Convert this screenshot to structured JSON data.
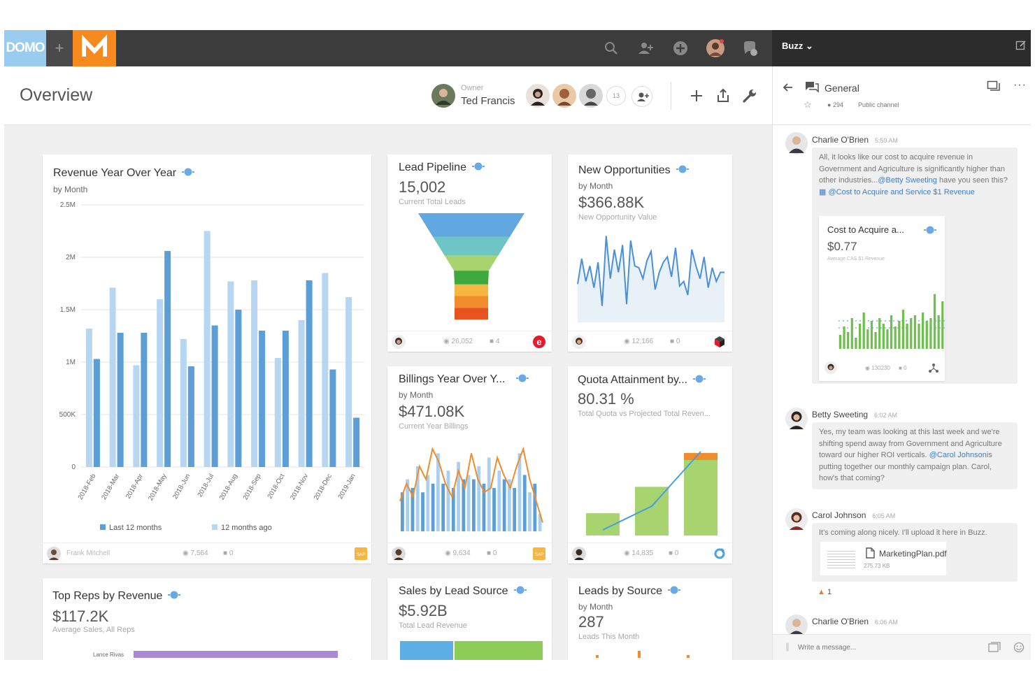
{
  "topbar": {
    "logo_text": "DOMO",
    "plus_label": "+",
    "buzz_label": "Buzz"
  },
  "page": {
    "title": "Overview",
    "owner_label": "Owner",
    "owner_name": "Ted Francis",
    "member_count": "13"
  },
  "cards": {
    "revenue": {
      "title": "Revenue Year Over Year",
      "subtitle": "by Month",
      "footer_user": "Frank Mitchell",
      "views": "7,564",
      "comments": "0"
    },
    "lead_pipeline": {
      "title": "Lead Pipeline",
      "value": "15,002",
      "desc": "Current Total Leads",
      "views": "26,052",
      "comments": "4"
    },
    "new_opps": {
      "title": "New Opportunities",
      "subtitle": "by Month",
      "value": "$366.88K",
      "desc": "New Opportunity Value",
      "views": "12,166",
      "comments": "0"
    },
    "billings": {
      "title": "Billings Year Over Y...",
      "subtitle": "by Month",
      "value": "$471.08K",
      "desc": "Current Year Billings",
      "views": "9,634",
      "comments": "0"
    },
    "quota": {
      "title": "Quota Attainment by...",
      "value": "80.31 %",
      "desc": "Total Quota vs Projected Total Reven...",
      "views": "14,835",
      "comments": "0"
    },
    "top_reps": {
      "title": "Top Reps by Revenue",
      "value": "$117.2K",
      "desc": "Average Sales, All Reps",
      "first_rep": "Lance Rivas"
    },
    "sales_lead": {
      "title": "Sales by Lead Source",
      "value": "$5.92B",
      "desc": "Total Lead Revenue"
    },
    "leads_source": {
      "title": "Leads by Source",
      "subtitle": "by Month",
      "value": "287",
      "desc": "Leads This Month"
    }
  },
  "chart_data": [
    {
      "type": "bar",
      "title": "Revenue Year Over Year",
      "categories": [
        "2018-Feb",
        "2018-Mar",
        "2018-Apr",
        "2018-May",
        "2018-Jun",
        "2018-Jul",
        "2018-Aug",
        "2018-Sep",
        "2018-Oct",
        "2018-Nov",
        "2018-Dec",
        "2019-Jan"
      ],
      "series": [
        {
          "name": "Last 12 months",
          "values": [
            1030000,
            1280000,
            1280000,
            2060000,
            960000,
            1350000,
            1500000,
            1300000,
            1300000,
            1780000,
            930000,
            470000
          ]
        },
        {
          "name": "12 months ago",
          "values": [
            1320000,
            1710000,
            970000,
            1600000,
            1220000,
            2250000,
            1770000,
            1780000,
            1040000,
            1400000,
            1850000,
            1620000
          ]
        }
      ],
      "yticks": [
        "0",
        "500K",
        "1M",
        "1.5M",
        "2M",
        "2.5M"
      ],
      "ylim": [
        0,
        2500000
      ],
      "colors": {
        "last": "#5b9fd6",
        "ago": "#b6d6f2"
      }
    },
    {
      "type": "funnel",
      "title": "Lead Pipeline",
      "stage_colors": [
        "#62a8e0",
        "#6fc4c4",
        "#a8d46f",
        "#3fa83f",
        "#f5b642",
        "#f08c2b",
        "#e8541e"
      ]
    },
    {
      "type": "line",
      "title": "New Opportunities",
      "values": [
        0.42,
        0.7,
        0.45,
        0.62,
        0.38,
        0.66,
        0.18,
        0.95,
        0.48,
        0.8,
        0.55,
        0.85,
        0.2,
        0.9,
        0.62,
        0.6,
        0.48,
        0.68,
        0.78,
        0.36,
        0.55,
        0.66,
        0.72,
        0.5,
        0.82,
        0.4,
        0.45,
        0.3,
        0.8,
        0.62,
        0.48,
        0.72,
        0.38,
        0.6,
        0.45,
        0.55,
        0.55
      ],
      "color": "#4a90d9"
    },
    {
      "type": "bar+line",
      "title": "Billings Year Over Y...",
      "bars": [
        0.45,
        0.6,
        0.5,
        0.75,
        0.45,
        0.65,
        0.55,
        0.9,
        0.55,
        0.7,
        0.5,
        0.8,
        0.6,
        0.65,
        0.6,
        0.75,
        0.55,
        0.85,
        0.5,
        0.7,
        0.6,
        0.6,
        0.5,
        0.9,
        0.65,
        0.45,
        0.55,
        0.2
      ],
      "line": [
        0.35,
        0.55,
        0.4,
        0.75,
        0.6,
        0.95,
        0.8,
        0.55,
        0.4,
        0.7,
        0.5,
        0.9,
        0.6,
        0.45,
        0.5,
        0.85,
        0.65,
        0.5,
        0.75,
        0.95,
        0.6,
        0.35,
        0.1
      ],
      "bar_colors": [
        "#5b9fd6",
        "#a9d0f0"
      ],
      "line_color": "#f08c2b"
    },
    {
      "type": "bar+line",
      "title": "Quota Attainment by...",
      "bars": [
        0.27,
        0.59,
        1.0
      ],
      "bar_color": "#a8d46f",
      "top_segment_color": "#f08c2b",
      "line_color": "#4a9de0"
    },
    {
      "type": "bar",
      "title": "Cost to Acquire a...",
      "values": [
        0.25,
        0.4,
        0.3,
        0.55,
        0.2,
        0.45,
        0.65,
        0.35,
        0.5,
        0.3,
        0.55,
        0.45,
        0.35,
        0.6,
        0.4,
        0.5,
        0.7,
        0.45,
        0.55,
        0.6,
        0.45,
        0.65,
        0.5,
        0.55,
        0.98,
        0.6,
        0.85
      ],
      "color": "#6fbf4f"
    }
  ],
  "legend": {
    "last": "Last 12 months",
    "ago": "12 months ago"
  },
  "buzz": {
    "channel": "General",
    "members": "294",
    "channel_type": "Public channel",
    "messages": [
      {
        "name": "Charlie O'Brien",
        "time": "5:59 AM"
      },
      {
        "name": "Betty Sweeting",
        "time": "6:02 AM"
      },
      {
        "name": "Carol Johnson",
        "time": "6:05 AM"
      },
      {
        "name": "Charlie O'Brien",
        "time": "6:06 AM"
      }
    ],
    "m1_a": "All, it looks like our cost to acquire revenue in Government and Agriculture is significantly higher than other industries...",
    "m1_mention": "@Betty Sweeting",
    "m1_b": "have you seen this?",
    "m1_link": "@Cost to Acquire and Service $1 Revenue",
    "mini_title": "Cost to Acquire a...",
    "mini_value": "$0.77",
    "mini_desc": "Average CAS $1 Revenue",
    "mini_views": "130230",
    "mini_comments": "0",
    "m2_a": "Yes, my team was looking at this last week and we're shifting spend away from Government and Agriculture toward our higher ROI verticals.",
    "m2_mention": "@Carol Johnson",
    "m2_b": "is putting together our monthly campaign plan. Carol, how's that coming?",
    "m3": "It's coming along nicely. I'll upload it here in Buzz.",
    "file_name": "MarketingPlan.pdf",
    "file_size": "275.73 KB",
    "likes": "1",
    "input_placeholder": "Write a message..."
  }
}
